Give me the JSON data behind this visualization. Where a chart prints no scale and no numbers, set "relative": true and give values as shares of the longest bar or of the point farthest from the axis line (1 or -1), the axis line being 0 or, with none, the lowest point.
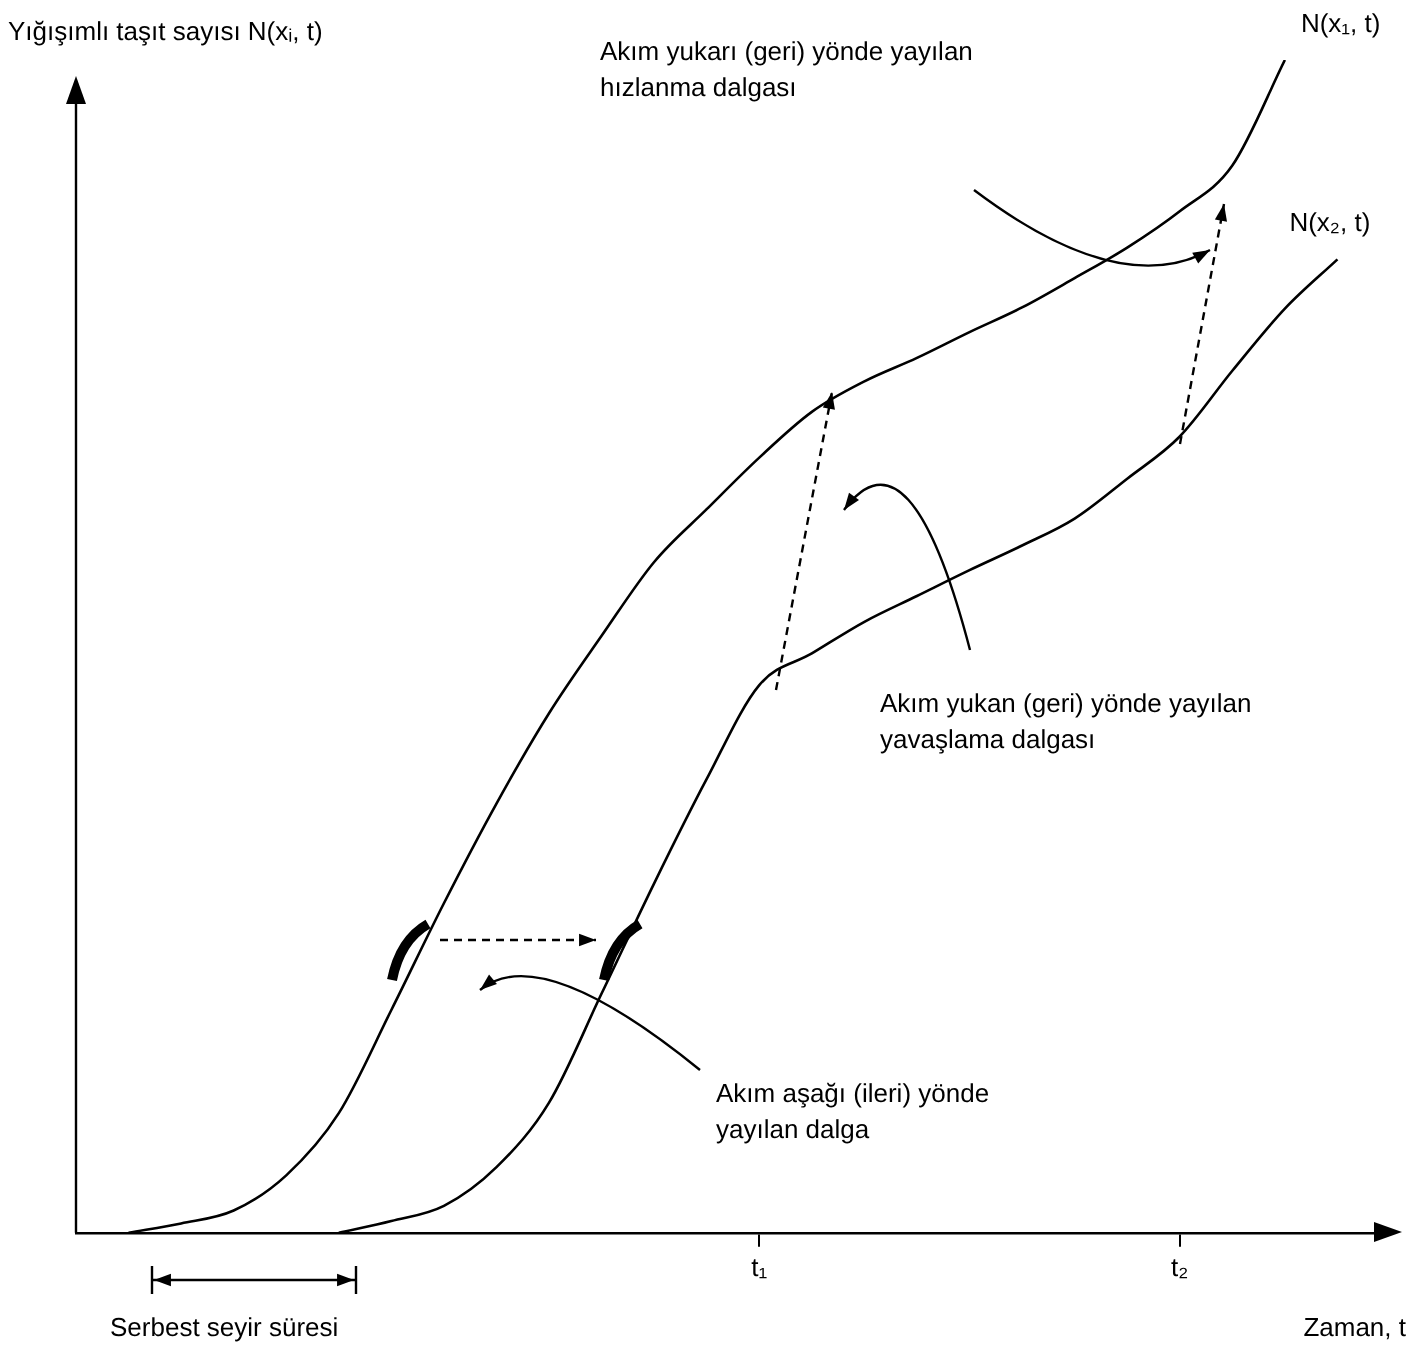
{
  "chart_data": {
    "type": "line",
    "relative": true,
    "ylabel": "Yığışımlı taşıt sayısı N(xᵢ, t)",
    "xlabel": "Zaman, t",
    "marker": "none",
    "legend": false,
    "categories": [
      null,
      null,
      null,
      null,
      null,
      null,
      null,
      null,
      null,
      null,
      null,
      null,
      null,
      "t₁",
      null,
      null,
      null,
      null,
      null,
      null,
      null,
      "t₂",
      null,
      null,
      null,
      null
    ],
    "series": [
      {
        "name": "N(x₁, t)",
        "color": "#000000",
        "values": [
          null,
          0,
          0.008,
          0.019,
          0.049,
          0.102,
          0.19,
          0.281,
          0.366,
          0.443,
          0.509,
          0.572,
          0.617,
          0.661,
          0.7,
          0.726,
          0.746,
          0.768,
          0.789,
          0.814,
          0.84,
          0.871,
          0.91,
          1,
          null,
          null
        ]
      },
      {
        "name": "N(x₂, t)",
        "color": "#000000",
        "values": [
          null,
          null,
          null,
          null,
          null,
          0,
          0.01,
          0.023,
          0.056,
          0.111,
          0.204,
          0.298,
          0.387,
          0.467,
          0.494,
          0.521,
          0.543,
          0.565,
          0.586,
          0.609,
          0.643,
          0.679,
          0.735,
          0.788,
          0.83,
          null
        ]
      }
    ],
    "annotations": [
      "Akım yukarı (geri) yönde yayılan\nhızlanma dalgası",
      "Akım yukan (geri) yönde yayılan\nyavaşlama dalgası",
      "Akım aşağı (ileri) yönde\nyayılan dalga",
      "Serbest seyir süresi"
    ]
  }
}
